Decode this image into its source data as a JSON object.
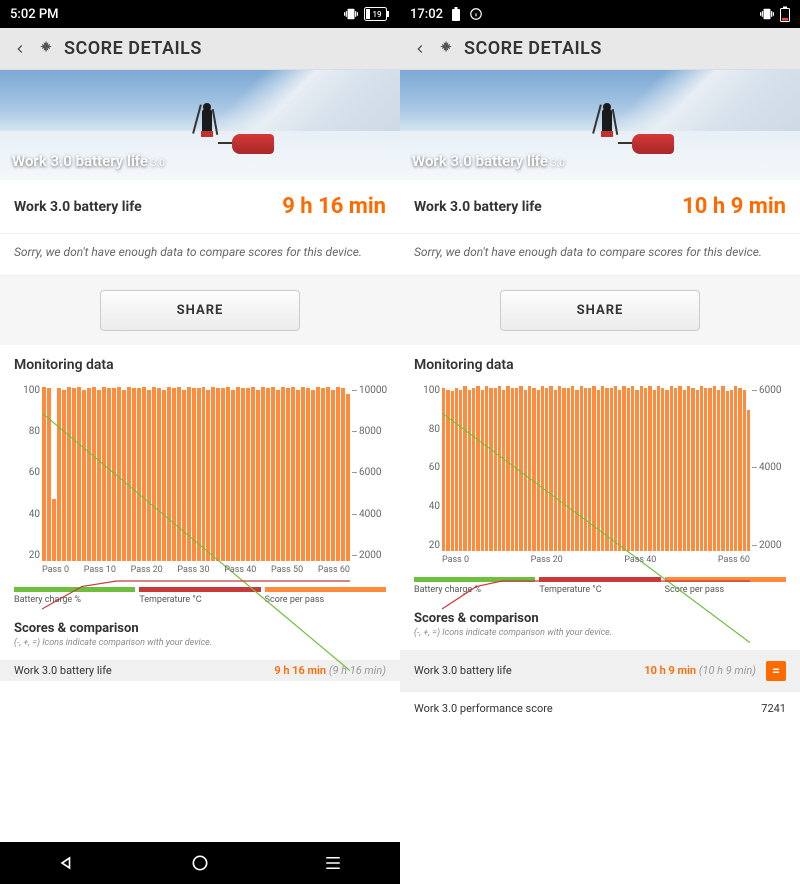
{
  "left": {
    "status": {
      "time": "5:02 PM",
      "battery_pct": "19"
    },
    "header": {
      "title": "SCORE DETAILS"
    },
    "hero": {
      "label": "Work 3.0 battery life",
      "sub": "3.0"
    },
    "score": {
      "label": "Work 3.0 battery life",
      "value": "9 h 16 min"
    },
    "nodata": "Sorry, we don't have enough data to compare scores for this device.",
    "share": "SHARE",
    "monitoring_title": "Monitoring data",
    "chart": {
      "type": "bar+line",
      "y_left_ticks": [
        "100",
        "80",
        "60",
        "40",
        "20"
      ],
      "y_right_ticks": [
        "10000",
        "8000",
        "6000",
        "4000",
        "2000"
      ],
      "x_ticks": [
        "Pass 0",
        "Pass 10",
        "Pass 20",
        "Pass 30",
        "Pass 40",
        "Pass 50",
        "Pass 60"
      ],
      "bar_color": "#ff8b3d",
      "bar_count": 62,
      "bar_heights_pct": [
        99,
        98,
        35,
        98,
        97,
        99,
        98,
        99,
        97,
        98,
        99,
        97,
        99,
        98,
        98,
        99,
        97,
        99,
        98,
        98,
        99,
        97,
        99,
        98,
        97,
        99,
        98,
        99,
        97,
        99,
        98,
        98,
        99,
        97,
        99,
        98,
        98,
        99,
        97,
        99,
        98,
        98,
        99,
        97,
        99,
        98,
        99,
        97,
        99,
        98,
        99,
        97,
        99,
        98,
        97,
        99,
        98,
        99,
        97,
        99,
        98,
        95
      ],
      "battery_line_color": "#6fbf3f",
      "battery_points": [
        [
          0,
          100
        ],
        [
          62,
          8
        ]
      ],
      "temp_line_color": "#c83a3a",
      "temp_points": [
        [
          0,
          30
        ],
        [
          8,
          38
        ],
        [
          15,
          40
        ],
        [
          62,
          40
        ]
      ],
      "y_left_range": [
        0,
        110
      ],
      "y_right_range": [
        0,
        11000
      ]
    },
    "legend": {
      "items": [
        {
          "color": "#6fbf3f",
          "label": "Battery charge %"
        },
        {
          "color": "#c83a3a",
          "label": "Temperature °C"
        },
        {
          "color": "#ff8b3d",
          "label": "Score per pass"
        }
      ]
    },
    "scores_title": "Scores & comparison",
    "scores_sub": "(-, +, =) Icons indicate comparison with your device.",
    "comparison": {
      "label": "Work 3.0 battery life",
      "value": "9 h 16 min",
      "dim": "(9 h 16 min)"
    }
  },
  "right": {
    "status": {
      "time": "17:02"
    },
    "header": {
      "title": "SCORE DETAILS"
    },
    "hero": {
      "label": "Work 3.0 battery life",
      "sub": "3.0"
    },
    "score": {
      "label": "Work 3.0 battery life",
      "value": "10 h 9 min"
    },
    "nodata": "Sorry, we don't have enough data to compare scores for this device.",
    "share": "SHARE",
    "monitoring_title": "Monitoring data",
    "chart": {
      "type": "bar+line",
      "y_left_ticks": [
        "100",
        "80",
        "60",
        "40",
        "20"
      ],
      "y_right_ticks": [
        "6000",
        "4000",
        "2000"
      ],
      "x_ticks": [
        "Pass 0",
        "Pass 20",
        "Pass 40",
        "Pass 60"
      ],
      "bar_color": "#ff8b3d",
      "bar_count": 72,
      "bar_heights_pct": [
        98,
        97,
        96,
        98,
        97,
        99,
        97,
        98,
        99,
        97,
        99,
        98,
        98,
        99,
        97,
        99,
        98,
        98,
        99,
        97,
        99,
        98,
        97,
        99,
        98,
        99,
        97,
        99,
        98,
        98,
        99,
        97,
        99,
        98,
        98,
        99,
        97,
        99,
        98,
        98,
        99,
        97,
        99,
        98,
        99,
        97,
        99,
        98,
        99,
        97,
        99,
        98,
        97,
        99,
        98,
        99,
        97,
        99,
        98,
        97,
        99,
        98,
        98,
        99,
        97,
        99,
        96,
        97,
        99,
        98,
        97,
        85
      ],
      "battery_line_color": "#6fbf3f",
      "battery_points": [
        [
          0,
          100
        ],
        [
          72,
          18
        ]
      ],
      "temp_line_color": "#c83a3a",
      "temp_points": [
        [
          0,
          30
        ],
        [
          8,
          38
        ],
        [
          14,
          40
        ],
        [
          72,
          40
        ]
      ],
      "y_left_range": [
        0,
        110
      ],
      "y_right_range": [
        0,
        7000
      ]
    },
    "legend": {
      "items": [
        {
          "color": "#6fbf3f",
          "label": "Battery charge %"
        },
        {
          "color": "#c83a3a",
          "label": "Temperature °C"
        },
        {
          "color": "#ff8b3d",
          "label": "Score per pass"
        }
      ]
    },
    "scores_title": "Scores & comparison",
    "scores_sub": "(-, +, =) Icons indicate comparison with your device.",
    "comparison1": {
      "label": "Work 3.0 battery life",
      "value": "10 h 9 min",
      "dim": "(10 h 9 min)",
      "badge": "="
    },
    "comparison2": {
      "label": "Work 3.0 performance score",
      "value": "7241"
    }
  },
  "colors": {
    "accent": "#ff6a00",
    "bar": "#ff8b3d",
    "green": "#6fbf3f",
    "red": "#c83a3a",
    "bg": "#ffffff"
  }
}
